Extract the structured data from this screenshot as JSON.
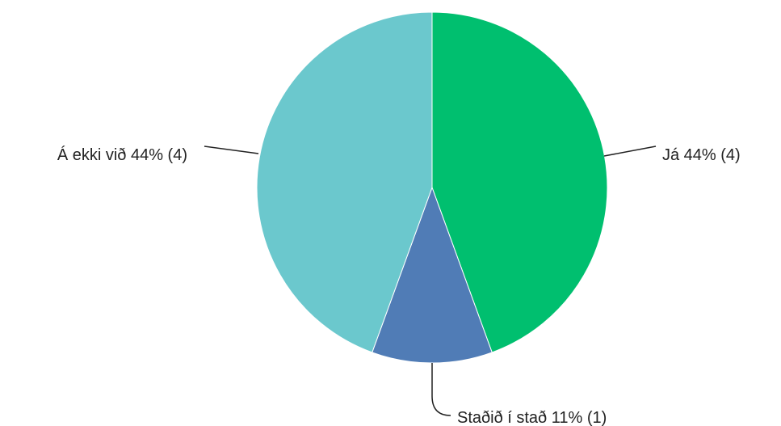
{
  "chart_data": {
    "type": "pie",
    "slices": [
      {
        "label": "Já",
        "percent_label": "44%",
        "count_label": "(4)",
        "value": 4,
        "color": "#00bf6f"
      },
      {
        "label": "Staðið í stað",
        "percent_label": "11%",
        "count_label": "(1)",
        "value": 1,
        "color": "#507cb6"
      },
      {
        "label": "Á ekki við",
        "percent_label": "44%",
        "count_label": "(4)",
        "value": 4,
        "color": "#6bc8cd"
      }
    ],
    "start_angle": "12 o'clock",
    "direction": "clockwise",
    "legend": "none",
    "labels": "outside with leader lines"
  }
}
